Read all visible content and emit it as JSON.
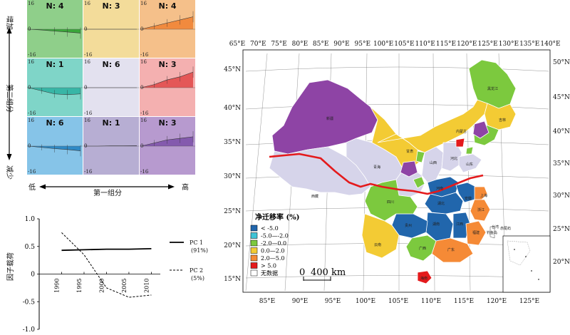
{
  "grid": {
    "y_axis_top": "增加",
    "y_axis_mid": "第二组分",
    "y_axis_bottom": "减少",
    "x_axis_left": "低",
    "x_axis_mid": "第一组分",
    "x_axis_right": "高",
    "tick_labels": [
      "16",
      "0",
      "-16"
    ],
    "cells": [
      {
        "n_label": "N: 4",
        "bg": "#8fcf8a",
        "fill": "#2ca02c",
        "values": [
          0,
          -0.5,
          -1.2,
          -1.8,
          -2.5
        ]
      },
      {
        "n_label": "N: 3",
        "bg": "#f3dc9a",
        "fill": "#d9a526",
        "values": [
          0,
          0,
          0,
          0,
          0
        ]
      },
      {
        "n_label": "N: 4",
        "bg": "#f5c08a",
        "fill": "#f08030",
        "values": [
          0,
          2,
          4,
          6,
          8
        ]
      },
      {
        "n_label": "N: 1",
        "bg": "#7fd5c8",
        "fill": "#2bb0a0",
        "values": [
          0,
          -2,
          -4,
          -4.5,
          -4
        ]
      },
      {
        "n_label": "N: 6",
        "bg": "#e3e1ef",
        "fill": "#bdbad8",
        "values": [
          0,
          0,
          0,
          0,
          0
        ]
      },
      {
        "n_label": "N: 3",
        "bg": "#f4b0b0",
        "fill": "#e04848",
        "values": [
          0,
          2,
          5,
          7,
          10
        ]
      },
      {
        "n_label": "N: 6",
        "bg": "#86c4e8",
        "fill": "#2080c0",
        "values": [
          0,
          -0.8,
          -1.6,
          -2.2,
          -3
        ]
      },
      {
        "n_label": "N: 1",
        "bg": "#b7aed3",
        "fill": "#7060a8",
        "values": [
          0,
          0,
          0.2,
          0.2,
          0.3
        ]
      },
      {
        "n_label": "N: 3",
        "bg": "#b79acf",
        "fill": "#7b4fa8",
        "values": [
          0,
          2,
          4,
          5,
          6
        ]
      }
    ]
  },
  "chart_data": {
    "type": "line",
    "x": [
      1990,
      1995,
      2000,
      2005,
      2010
    ],
    "series": [
      {
        "name": "PC 1",
        "pct": "(91%)",
        "values": [
          0.43,
          0.44,
          0.45,
          0.45,
          0.46
        ],
        "style": "solid"
      },
      {
        "name": "PC 2",
        "pct": "(5%)",
        "values": [
          0.75,
          0.35,
          -0.25,
          -0.42,
          -0.38
        ],
        "style": "dashed"
      }
    ],
    "ylabel": "因子载荷",
    "ylim": [
      -1.0,
      1.0
    ],
    "yticks": [
      "1.0",
      "0.5",
      "0",
      "-0.5",
      "-1.0"
    ],
    "xticks": [
      "1990",
      "1995",
      "2000",
      "2005",
      "2010"
    ]
  },
  "map": {
    "top_lon_labels": [
      "65°E",
      "70°E",
      "75°E",
      "80°E",
      "85°E",
      "90°E",
      "95°E",
      "100°E",
      "105°E",
      "110°E",
      "115°E",
      "120°E",
      "125°E",
      "130°E",
      "135°E",
      "140°E"
    ],
    "bottom_lon_labels": [
      "85°E",
      "90°E",
      "95°E",
      "100°E",
      "105°E",
      "110°E",
      "115°E",
      "120°E",
      "125°E"
    ],
    "left_lat_labels": [
      "45°N",
      "40°N",
      "35°N",
      "30°N",
      "25°N",
      "20°N",
      "15°N"
    ],
    "right_lat_labels": [
      "50°N",
      "45°N",
      "40°N",
      "35°N",
      "30°N",
      "25°N",
      "20°N"
    ],
    "legend_title": "净迁移率 (%)",
    "legend_items": [
      {
        "label": "< -5.0",
        "color": "#2166ac"
      },
      {
        "label": "-5.0—-2.0",
        "color": "#3fc3d6"
      },
      {
        "label": "-2.0—0.0",
        "color": "#7cc93e"
      },
      {
        "label": "0.0—2.0",
        "color": "#f3cb34"
      },
      {
        "label": "2.0—5.0",
        "color": "#f58a36"
      },
      {
        "label": "> 5.0",
        "color": "#e41a1c"
      },
      {
        "label": "无数据",
        "color": "#ffffff"
      }
    ],
    "scale_label": "400 km",
    "scale_zero": "0",
    "province_labels": [
      "新疆",
      "西藏",
      "青海",
      "甘肃",
      "内蒙古",
      "黑龙江",
      "吉林",
      "四川",
      "云南",
      "贵州",
      "湖南",
      "湖北",
      "河南",
      "山西",
      "河北",
      "山东",
      "安徽",
      "江西",
      "浙江",
      "福建",
      "广东",
      "广西",
      "海南",
      "台湾",
      "钓鱼岛",
      "赤尾屿",
      "上海"
    ]
  }
}
